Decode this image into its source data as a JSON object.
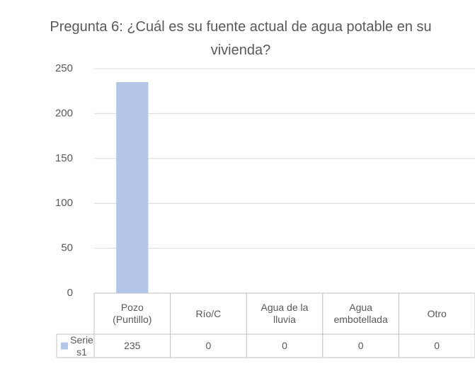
{
  "chart_data": {
    "type": "bar",
    "title": "Pregunta 6: ¿Cuál es su fuente actual de agua potable en su vivienda?",
    "categories": [
      "Pozo (Puntillo)",
      "Río/C",
      "Agua de la lluvia",
      "Agua embotellada",
      "Otro"
    ],
    "series": [
      {
        "name": "Series1",
        "color": "#b4c6e7",
        "values": [
          235,
          0,
          0,
          0,
          0
        ]
      }
    ],
    "ylim": [
      0,
      250
    ],
    "yticks": [
      0,
      50,
      100,
      150,
      200,
      250
    ],
    "grid": true,
    "data_table": true
  }
}
